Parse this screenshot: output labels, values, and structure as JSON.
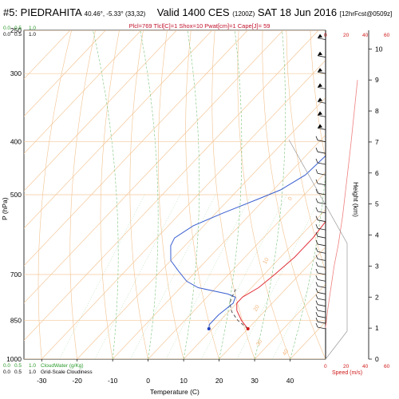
{
  "header": {
    "station": "#5: PIEDRAHITA",
    "coords": "40.46°, -5.33° (33,32)",
    "valid": "Valid 1400 CES",
    "utc": "(1200Z)",
    "date": "SAT 18 Jun 2016",
    "forecast": "[12hrFcst@0509z]",
    "indices": "Plcl=769 Tlcl[C]=1 Shox=10 Pwat[cm]=1 Cape[J]= 59"
  },
  "legend_top": {
    "scale_green": [
      "0.0",
      "0.5",
      "1.0"
    ],
    "scale_black": [
      "0.0",
      "0.5",
      "1.0"
    ]
  },
  "legend_bottom": {
    "row1": [
      "0.0",
      "0.5",
      "1.0"
    ],
    "row1_label": "CloudWater (g/Kg)",
    "row2": [
      "0.0",
      "0.5",
      "1.0"
    ],
    "row2_label": "Grid-Scale Cloudiness"
  },
  "speed_axis": {
    "ticks_top": [
      "0",
      "20",
      "40",
      "60"
    ],
    "ticks_bottom": [
      "0",
      "20",
      "40",
      "60"
    ],
    "label": "Speed (m/s)"
  },
  "height_axis": {
    "label": "Height (km)",
    "ticks": [
      "0",
      "1",
      "2",
      "3",
      "4",
      "5",
      "6",
      "7",
      "8",
      "9",
      "10"
    ]
  },
  "chart_data": {
    "type": "line",
    "xlabel": "Temperature (C)",
    "ylabel": "P (hPa)",
    "xlim": [
      -35,
      50
    ],
    "ylim": [
      1000,
      250
    ],
    "y_scale": "log",
    "x_ticks": [
      "-30",
      "-20",
      "-10",
      "0",
      "10",
      "20",
      "30",
      "40"
    ],
    "y_ticks": [
      {
        "p": 250,
        "label": "250"
      },
      {
        "p": 300,
        "label": "300"
      },
      {
        "p": 400,
        "label": "400"
      },
      {
        "p": 500,
        "label": "500"
      },
      {
        "p": 700,
        "label": "700"
      },
      {
        "p": 850,
        "label": "850"
      },
      {
        "p": 1000,
        "label": "1000"
      }
    ],
    "skew_isotherm_labels": [
      "-10",
      "0",
      "10",
      "20",
      "30",
      "40"
    ],
    "series": [
      {
        "key": "temperature",
        "color": "#e0303a",
        "points": [
          [
            20,
            880
          ],
          [
            16,
            850
          ],
          [
            12,
            815
          ],
          [
            10,
            790
          ],
          [
            10,
            770
          ],
          [
            12,
            740
          ],
          [
            13,
            700
          ],
          [
            14,
            650
          ],
          [
            14,
            600
          ],
          [
            13,
            550
          ],
          [
            11,
            500
          ],
          [
            8,
            450
          ],
          [
            5,
            400
          ],
          [
            0,
            350
          ],
          [
            -5,
            300
          ],
          [
            -8,
            275
          ],
          [
            -11,
            255
          ]
        ]
      },
      {
        "key": "dewpoint",
        "color": "#3a5fd0",
        "points": [
          [
            9,
            880
          ],
          [
            8,
            865
          ],
          [
            8,
            830
          ],
          [
            9,
            790
          ],
          [
            8,
            770
          ],
          [
            5,
            760
          ],
          [
            -5,
            740
          ],
          [
            -10,
            720
          ],
          [
            -15,
            690
          ],
          [
            -20,
            660
          ],
          [
            -24,
            620
          ],
          [
            -25,
            600
          ],
          [
            -23,
            570
          ],
          [
            -18,
            540
          ],
          [
            -12,
            510
          ],
          [
            -8,
            490
          ],
          [
            -5,
            460
          ],
          [
            -4,
            400
          ],
          [
            -6,
            370
          ],
          [
            -9,
            330
          ],
          [
            -13,
            300
          ],
          [
            -16,
            270
          ],
          [
            -18,
            255
          ]
        ]
      },
      {
        "key": "parcel",
        "color": "#555555",
        "dashed": true,
        "points": [
          [
            20,
            880
          ],
          [
            15,
            850
          ],
          [
            11,
            820
          ],
          [
            8,
            790
          ],
          [
            7,
            770
          ],
          [
            6,
            745
          ]
        ]
      }
    ],
    "surface": {
      "temperature": 20,
      "dewpoint": 9,
      "pressure": 880
    },
    "height_profile": {
      "color": "#f08080",
      "points": [
        [
          0,
          1
        ],
        [
          2,
          1.6
        ],
        [
          5,
          2.3
        ],
        [
          8,
          3
        ],
        [
          12,
          3.7
        ],
        [
          16,
          4.6
        ],
        [
          20,
          5.8
        ],
        [
          24,
          7
        ],
        [
          27,
          8
        ],
        [
          30,
          9
        ]
      ]
    },
    "wind_barbs_hpa": [
      880,
      860,
      840,
      820,
      800,
      780,
      760,
      740,
      720,
      700,
      680,
      660,
      640,
      620,
      600,
      580,
      560,
      540,
      520,
      500,
      480,
      460,
      440,
      420,
      400,
      380,
      360,
      340,
      320,
      300,
      280,
      260
    ]
  }
}
